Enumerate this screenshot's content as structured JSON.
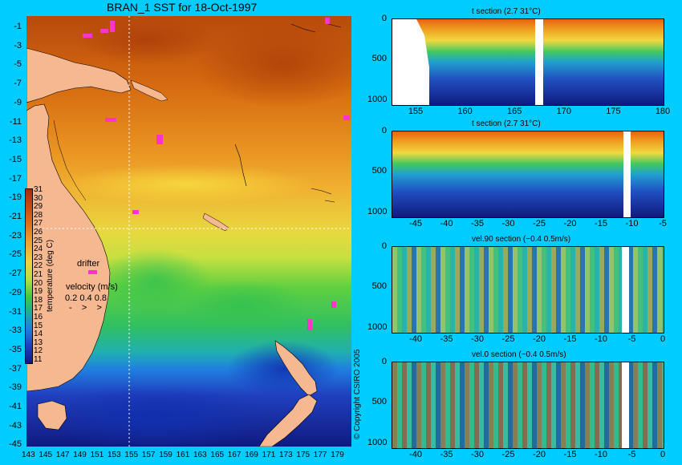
{
  "map": {
    "title": "BRAN_1 SST for 18-Oct-1997",
    "lat_ticks": [
      "-1",
      "-3",
      "-5",
      "-7",
      "-9",
      "-11",
      "-13",
      "-15",
      "-17",
      "-19",
      "-21",
      "-23",
      "-25",
      "-27",
      "-29",
      "-31",
      "-33",
      "-35",
      "-37",
      "-39",
      "-41",
      "-43",
      "-45"
    ],
    "lon_ticks": [
      "143",
      "145",
      "147",
      "149",
      "151",
      "153",
      "155",
      "157",
      "159",
      "161",
      "163",
      "165",
      "167",
      "169",
      "171",
      "173",
      "175",
      "177",
      "179"
    ]
  },
  "colorbar": {
    "label": "temperature (deg C)",
    "ticks": [
      "31",
      "30",
      "29",
      "28",
      "27",
      "26",
      "25",
      "24",
      "23",
      "22",
      "21",
      "20",
      "19",
      "18",
      "17",
      "16",
      "15",
      "14",
      "13",
      "12",
      "11"
    ]
  },
  "legend": {
    "drifter": "drifter",
    "velocity_title": "velocity (m/s)",
    "velocity_values": "0.2 0.4 0.8"
  },
  "copyright": "© Copyright CSIRO 2005",
  "sections": [
    {
      "title": "t section (2.7      31°C)",
      "y_ticks": [
        "0",
        "500",
        "1000"
      ],
      "x_ticks": [
        "155",
        "160",
        "165",
        "170",
        "175",
        "180"
      ]
    },
    {
      "title": "t section (2.7      31°C)",
      "y_ticks": [
        "0",
        "500",
        "1000"
      ],
      "x_ticks": [
        "-45",
        "-40",
        "-35",
        "-30",
        "-25",
        "-20",
        "-15",
        "-10",
        "-5"
      ]
    },
    {
      "title": "vel.90 section (−0.4      0.5m/s)",
      "y_ticks": [
        "0",
        "500",
        "1000"
      ],
      "x_ticks": [
        "-40",
        "-35",
        "-30",
        "-25",
        "-20",
        "-15",
        "-10",
        "-5",
        "0"
      ]
    },
    {
      "title": "vel.0 section (−0.4      0.5m/s)",
      "y_ticks": [
        "0",
        "500",
        "1000"
      ],
      "x_ticks": [
        "-40",
        "-35",
        "-30",
        "-25",
        "-20",
        "-15",
        "-10",
        "-5",
        "0"
      ]
    }
  ],
  "colors": {
    "background": "#00ccff",
    "land": "#f5b891",
    "warm": "#c85a10",
    "cool": "#1a2a9a",
    "drifter": "#ff33cc"
  }
}
